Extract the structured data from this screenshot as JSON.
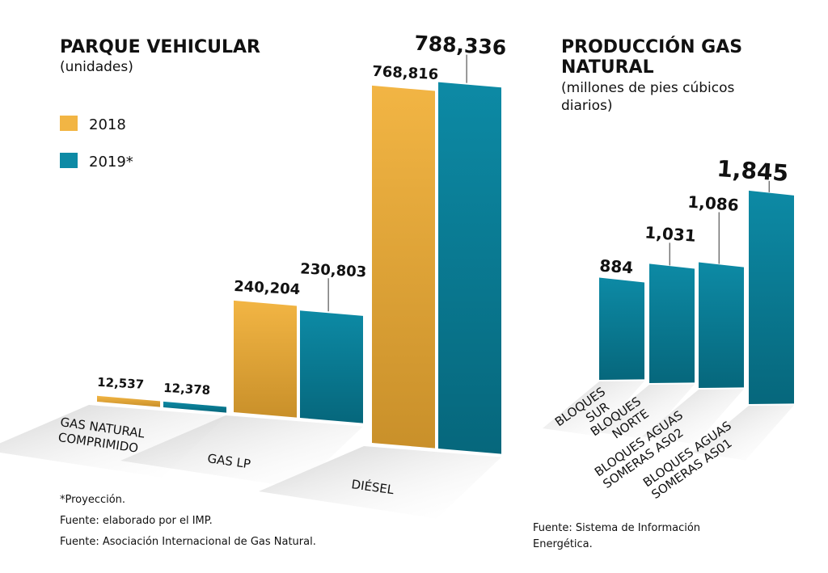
{
  "colors": {
    "y2018": "#f2b544",
    "y2018_dark": "#c9902a",
    "y2019": "#0d8aa5",
    "y2019_dark": "#06677c",
    "shadow": "#d9d9d9"
  },
  "chart_data": [
    {
      "type": "bar",
      "title": "PARQUE VEHICULAR",
      "subtitle": "(unidades)",
      "categories": [
        "GAS NATURAL COMPRIMIDO",
        "GAS LP",
        "DIÉSEL"
      ],
      "series": [
        {
          "name": "2018",
          "values": [
            12537,
            240204,
            768816
          ],
          "labels": [
            "12,537",
            "240,204",
            "768,816"
          ]
        },
        {
          "name": "2019*",
          "values": [
            12378,
            230803,
            788336
          ],
          "labels": [
            "12,378",
            "230,803",
            "788,336"
          ]
        }
      ],
      "legend": "top-left",
      "notes": [
        "*Proyección.",
        "Fuente: elaborado por el IMP.",
        "Fuente: Asociación Internacional de Gas Natural."
      ]
    },
    {
      "type": "bar",
      "title": "PRODUCCIÓN GAS NATURAL",
      "title_lines": [
        "PRODUCCIÓN GAS",
        "NATURAL"
      ],
      "subtitle": "(millones de pies cúbicos diarios)",
      "subtitle_lines": [
        "(millones de pies cúbicos",
        "diarios)"
      ],
      "categories": [
        "BLOQUES SUR",
        "BLOQUES NORTE",
        "BLOQUES AGUAS SOMERAS AS02",
        "BLOQUES AGUAS SOMERAS AS01"
      ],
      "category_lines": [
        [
          "BLOQUES",
          "SUR"
        ],
        [
          "BLOQUES",
          "NORTE"
        ],
        [
          "BLOQUES AGUAS",
          "SOMERAS AS02"
        ],
        [
          "BLOQUES AGUAS",
          "SOMERAS AS01"
        ]
      ],
      "series": [
        {
          "values": [
            884,
            1031,
            1086,
            1845
          ],
          "labels": [
            "884",
            "1,031",
            "1,086",
            "1,845"
          ]
        }
      ],
      "notes": [
        "Fuente: Sistema de Información",
        "Energética."
      ]
    }
  ]
}
